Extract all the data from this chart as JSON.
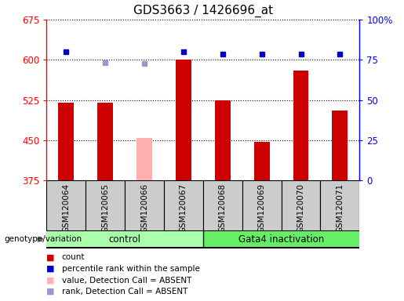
{
  "title": "GDS3663 / 1426696_at",
  "samples": [
    "GSM120064",
    "GSM120065",
    "GSM120066",
    "GSM120067",
    "GSM120068",
    "GSM120069",
    "GSM120070",
    "GSM120071"
  ],
  "counts": [
    520,
    520,
    null,
    600,
    525,
    447,
    580,
    505
  ],
  "counts_absent": [
    null,
    null,
    455,
    null,
    null,
    null,
    null,
    null
  ],
  "percentile_ranks_left": [
    615,
    null,
    null,
    615,
    610,
    610,
    610,
    610
  ],
  "percentile_ranks_absent_left": [
    null,
    595,
    593,
    null,
    null,
    null,
    null,
    null
  ],
  "ylim_left": [
    375,
    675
  ],
  "ylim_right": [
    0,
    100
  ],
  "yticks_left": [
    375,
    450,
    525,
    600,
    675
  ],
  "yticks_right": [
    0,
    25,
    50,
    75,
    100
  ],
  "ytick_labels_right": [
    "0",
    "25",
    "50",
    "75",
    "100%"
  ],
  "bar_color": "#cc0000",
  "bar_color_absent": "#ffb0b0",
  "rank_color": "#0000cc",
  "rank_color_absent": "#9999cc",
  "bg_color": "#cccccc",
  "legend_items": [
    {
      "color": "#cc0000",
      "label": "count"
    },
    {
      "color": "#0000cc",
      "label": "percentile rank within the sample"
    },
    {
      "color": "#ffb0b0",
      "label": "value, Detection Call = ABSENT"
    },
    {
      "color": "#9999cc",
      "label": "rank, Detection Call = ABSENT"
    }
  ],
  "genotype_label": "genotype/variation",
  "ctrl_color": "#aaffaa",
  "gata_color": "#66ee66",
  "title_fontsize": 11,
  "tick_fontsize": 8.5,
  "label_fontsize": 8
}
